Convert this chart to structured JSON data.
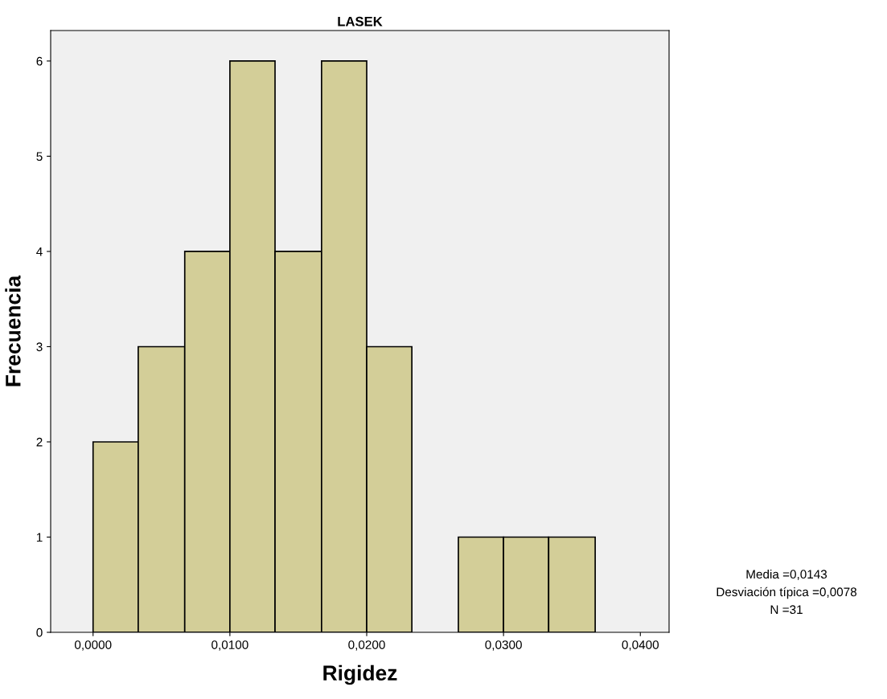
{
  "chart_data": {
    "type": "histogram",
    "title": "LASEK",
    "xlabel": "Rigidez",
    "ylabel": "Frecuencia",
    "bins": [
      0,
      0.0033,
      0.0067,
      0.01,
      0.0133,
      0.0167,
      0.02,
      0.0233,
      0.0267,
      0.03,
      0.0333,
      0.0367
    ],
    "values": [
      2,
      3,
      4,
      6,
      4,
      6,
      3,
      0,
      1,
      1,
      1
    ],
    "color": "#d3ce98",
    "xlim": [
      -0.0031,
      0.0421
    ],
    "ylim": [
      0,
      6.32
    ],
    "xticks": [
      {
        "value": 0,
        "label": "0,0000"
      },
      {
        "value": 0.01,
        "label": "0,0100"
      },
      {
        "value": 0.02,
        "label": "0,0200"
      },
      {
        "value": 0.03,
        "label": "0,0300"
      },
      {
        "value": 0.04,
        "label": "0,0400"
      }
    ],
    "yticks": [
      0,
      1,
      2,
      3,
      4,
      5,
      6
    ],
    "grid": false,
    "legend": false,
    "annotations": [
      "Media =0,0143",
      "Desviación típica =0,0078",
      "N =31"
    ]
  }
}
